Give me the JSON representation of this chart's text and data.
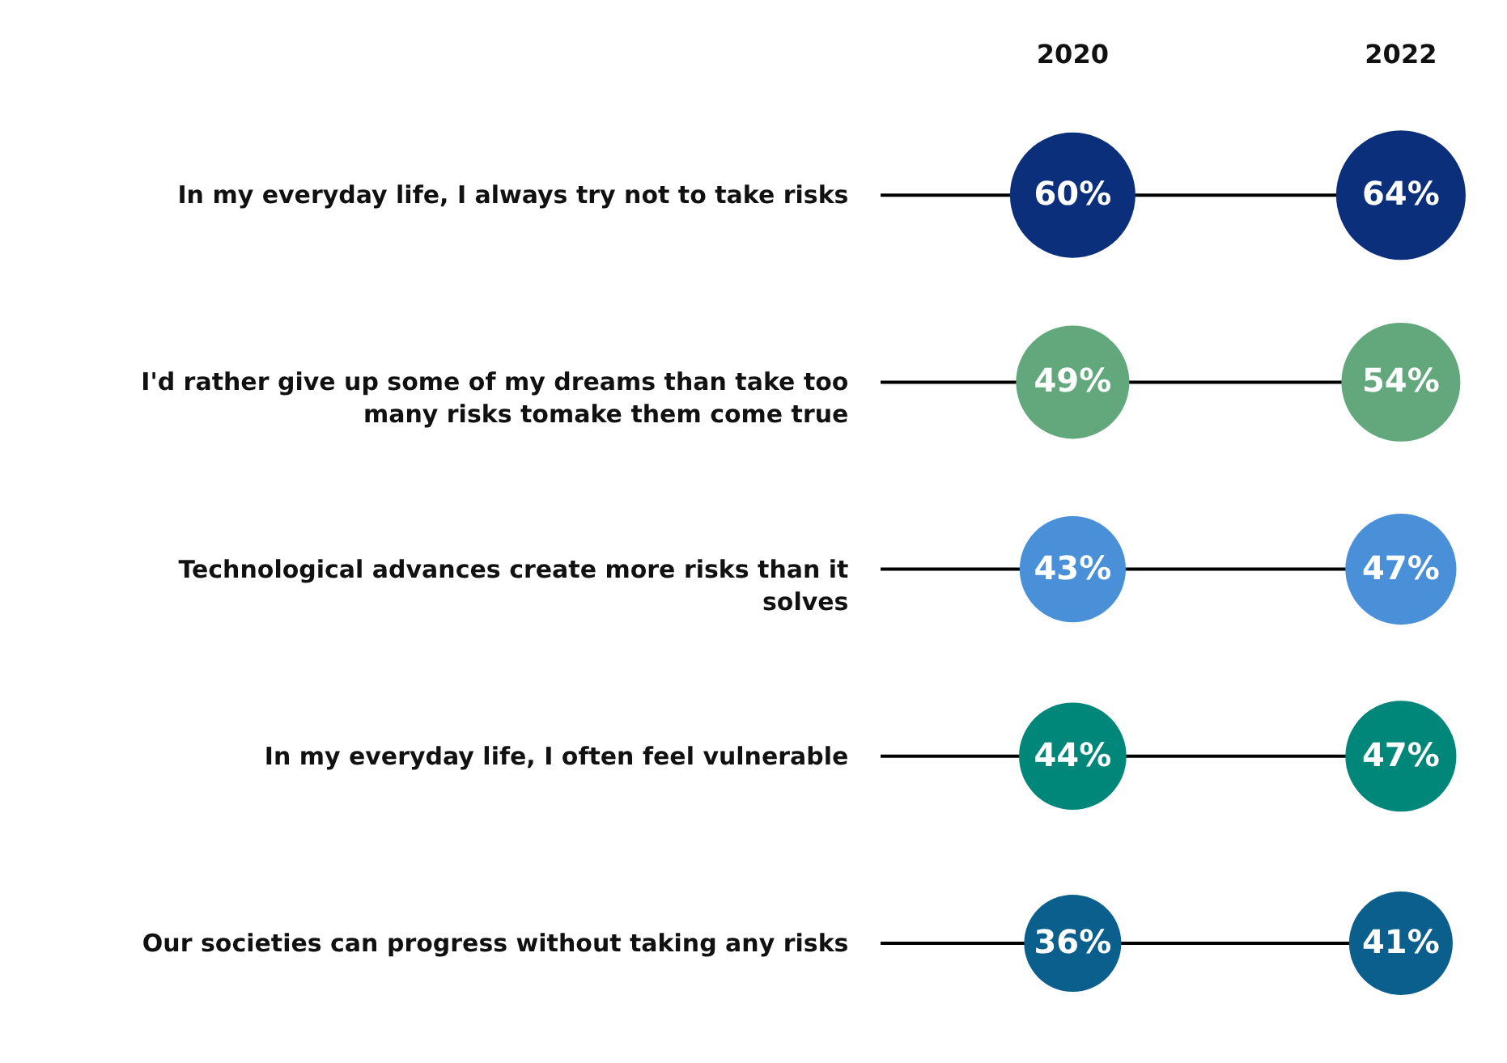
{
  "chart_data": {
    "type": "other",
    "categories": [
      "In my everyday life, I always try not to take risks",
      "I'd rather give up some of my dreams than take too many risks tomake them come true",
      "Technological advances create more risks than it solves",
      "In my everyday life, I often feel vulnerable",
      "Our societies can progress without taking any risks"
    ],
    "series": [
      {
        "name": "2020",
        "colors": [
          "#0b2f7a",
          "#62a87c",
          "#4a90d9",
          "#00877a",
          "#0b5f8c"
        ],
        "values": [
          60,
          49,
          43,
          44,
          36
        ],
        "value_labels": [
          "60%",
          "49%",
          "43%",
          "44%",
          "36%"
        ]
      },
      {
        "name": "2022",
        "colors": [
          "#0b2f7a",
          "#62a87c",
          "#4a90d9",
          "#00877a",
          "#0b5f8c"
        ],
        "values": [
          64,
          54,
          47,
          47,
          41
        ],
        "value_labels": [
          "64%",
          "54%",
          "47%",
          "47%",
          "41%"
        ]
      }
    ]
  }
}
